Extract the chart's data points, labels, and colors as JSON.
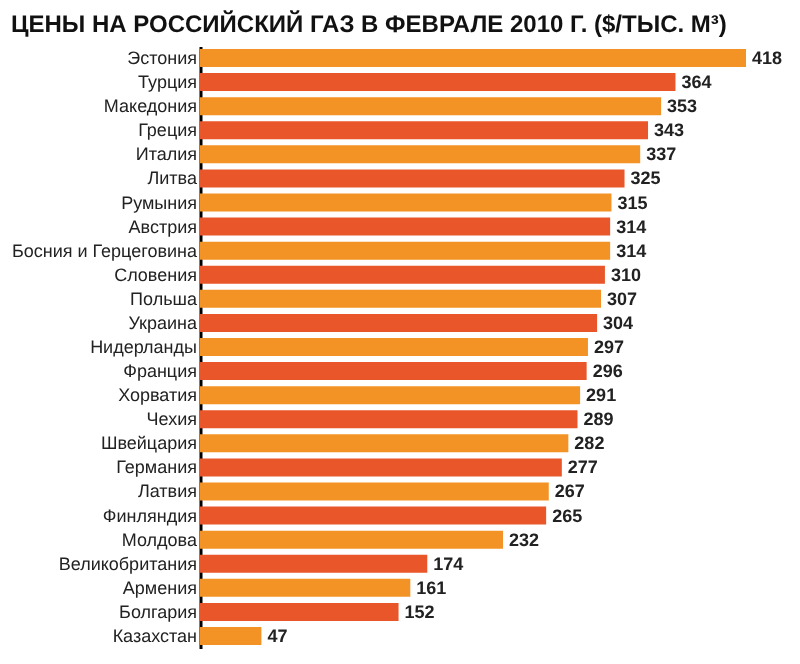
{
  "chart_data": {
    "type": "bar",
    "orientation": "horizontal",
    "title": "ЦЕНЫ НА РОССИЙСКИЙ ГАЗ В ФЕВРАЛЕ 2010 Г. ($/ТЫС. М³)",
    "categories": [
      "Эстония",
      "Турция",
      "Македония",
      "Греция",
      "Италия",
      "Литва",
      "Румыния",
      "Австрия",
      "Босния и Герцеговина",
      "Словения",
      "Польша",
      "Украина",
      "Нидерланды",
      "Франция",
      "Хорватия",
      "Чехия",
      "Швейцария",
      "Германия",
      "Латвия",
      "Финляндия",
      "Молдова",
      "Великобритания",
      "Армения",
      "Болгария",
      "Казахстан"
    ],
    "values": [
      418,
      364,
      353,
      343,
      337,
      325,
      315,
      314,
      314,
      310,
      307,
      304,
      297,
      296,
      291,
      289,
      282,
      277,
      267,
      265,
      232,
      174,
      161,
      152,
      47
    ],
    "colors": [
      "#f39325",
      "#e8562a",
      "#f39325",
      "#e8562a",
      "#f39325",
      "#e8562a",
      "#f39325",
      "#e8562a",
      "#f39325",
      "#e8562a",
      "#f39325",
      "#e8562a",
      "#f39325",
      "#e8562a",
      "#f39325",
      "#e8562a",
      "#f39325",
      "#e8562a",
      "#f39325",
      "#e8562a",
      "#f39325",
      "#e8562a",
      "#f39325",
      "#e8562a",
      "#f39325"
    ],
    "data_labels": true,
    "grid": false
  }
}
